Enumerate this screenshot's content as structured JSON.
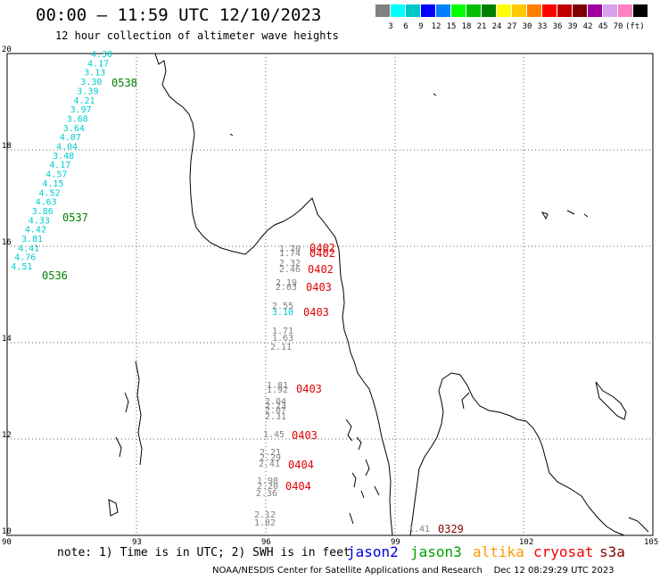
{
  "title": "00:00 – 11:59 UTC 12/10/2023",
  "subtitle": "12 hour collection of altimeter wave heights",
  "legend": {
    "colors": [
      "#808080",
      "#00ffff",
      "#00c8c8",
      "#0000ff",
      "#0080ff",
      "#00ff00",
      "#00c000",
      "#008000",
      "#ffff00",
      "#ffc800",
      "#ff8000",
      "#ff0000",
      "#c00000",
      "#800000",
      "#a000a0",
      "#d8a0f0",
      "#ff80c0",
      "#000000"
    ],
    "labels": [
      "3",
      "6",
      "9",
      "12",
      "15",
      "18",
      "21",
      "24",
      "27",
      "30",
      "33",
      "36",
      "39",
      "42",
      "45",
      "70",
      "(ft)"
    ]
  },
  "axes": {
    "lat_labels": [
      "20",
      "18",
      "16",
      "14",
      "12",
      "10"
    ],
    "lon_labels": [
      "90",
      "93",
      "96",
      "99",
      "102",
      "105"
    ]
  },
  "tracks": [
    {
      "color": "#00d8d8",
      "points": [
        [
          "4.30",
          20,
          21.95
        ],
        [
          "4.17",
          20,
          21.75
        ],
        [
          "3.13",
          20,
          21.55
        ],
        [
          "3.30",
          20,
          21.35
        ],
        [
          "3.39",
          20,
          21.15
        ],
        [
          "4.21",
          20,
          20.95
        ],
        [
          "3.97",
          20,
          20.75
        ],
        [
          "3.68",
          20,
          20.55
        ],
        [
          "3.64",
          20,
          20.35
        ],
        [
          "4.07",
          20,
          20.15
        ],
        [
          "4.04",
          20,
          19.95
        ],
        [
          "3.48",
          20,
          19.75
        ],
        [
          "4.17",
          20,
          19.55
        ],
        [
          "4.57",
          20,
          19.35
        ],
        [
          "4.15",
          20,
          19.15
        ],
        [
          "4.52",
          20,
          18.95
        ],
        [
          "4.63",
          20,
          18.75
        ],
        [
          "3.86",
          20,
          18.55
        ],
        [
          "4.33",
          20,
          18.35
        ],
        [
          "4.42",
          20,
          18.15
        ],
        [
          "3.81",
          20,
          17.95
        ],
        [
          "4.41",
          20,
          17.75
        ],
        [
          "4.76",
          20,
          17.55
        ],
        [
          "4.51",
          20,
          17.35
        ]
      ]
    },
    {
      "color": "#808080",
      "points": [
        [
          "1.70",
          0,
          0
        ],
        [
          "1.74",
          0,
          0
        ],
        [
          "2.32",
          0,
          0
        ],
        [
          "2.46",
          0,
          0
        ],
        [
          "2.19",
          0,
          0
        ],
        [
          "2.03",
          0,
          0
        ],
        [
          "2.55",
          0,
          0
        ],
        [
          "1.71",
          0,
          0
        ],
        [
          "1.63",
          0,
          0
        ],
        [
          "2.11",
          0,
          0
        ],
        [
          "1.81",
          0,
          0
        ],
        [
          "1.92",
          0,
          0
        ],
        [
          "2.04",
          0,
          0
        ],
        [
          "2.23",
          0,
          0
        ],
        [
          "2.07",
          0,
          0
        ],
        [
          "2.31",
          0,
          0
        ],
        [
          "1.45",
          0,
          0
        ],
        [
          "2.21",
          0,
          0
        ],
        [
          "2.29",
          0,
          0
        ],
        [
          "2.41",
          0,
          0
        ],
        [
          "1.98",
          0,
          0
        ],
        [
          "2.20",
          0,
          0
        ],
        [
          "2.36",
          0,
          0
        ],
        [
          "2.12",
          0,
          0
        ],
        [
          "1.82",
          0,
          0
        ],
        [
          "1.41",
          0,
          0
        ]
      ]
    }
  ],
  "cyan_values": [
    "4.30",
    "4.17",
    "3.13",
    "3.30",
    "3.39",
    "4.21",
    "3.97",
    "3.68",
    "3.64",
    "4.07",
    "4.04",
    "3.48",
    "4.17",
    "4.57",
    "4.15",
    "4.52",
    "4.63",
    "3.86",
    "4.33",
    "4.42",
    "3.81",
    "4.41",
    "4.76",
    "4.51"
  ],
  "gray_values": [
    "1.70",
    "1.74",
    "2.32",
    "2.46",
    "2.19",
    "2.03",
    "1.71",
    "1.63",
    "2.11",
    "1.81",
    "1.92",
    "2.04",
    "2.23",
    "2.07",
    "2.31",
    "1.45",
    "2.21",
    "2.29",
    "2.41",
    "1.98",
    "2.20",
    "2.36",
    "2.12",
    "1.82",
    "1.41"
  ],
  "cyan_extra": "3.10",
  "gray_extra": "2.55",
  "times": {
    "jason3": [
      "0538",
      "0537",
      "0536"
    ],
    "cryosat": [
      "0402",
      "0402",
      "0402",
      "0403",
      "0403",
      "0403",
      "0403",
      "0404",
      "0404"
    ],
    "s3a": [
      "0329"
    ]
  },
  "footer": {
    "note": "note: 1) Time is in UTC; 2) SWH is in feet",
    "satellites": [
      {
        "name": "jason2",
        "color": "#0000dd"
      },
      {
        "name": "jason3",
        "color": "#00a000"
      },
      {
        "name": "altika",
        "color": "#ff9900"
      },
      {
        "name": "cryosat",
        "color": "#ee0000"
      },
      {
        "name": "s3a",
        "color": "#800000"
      }
    ],
    "credit": "NOAA/NESDIS Center for Satellite Applications and Research    Dec 12 08:29:29 UTC 2023"
  }
}
